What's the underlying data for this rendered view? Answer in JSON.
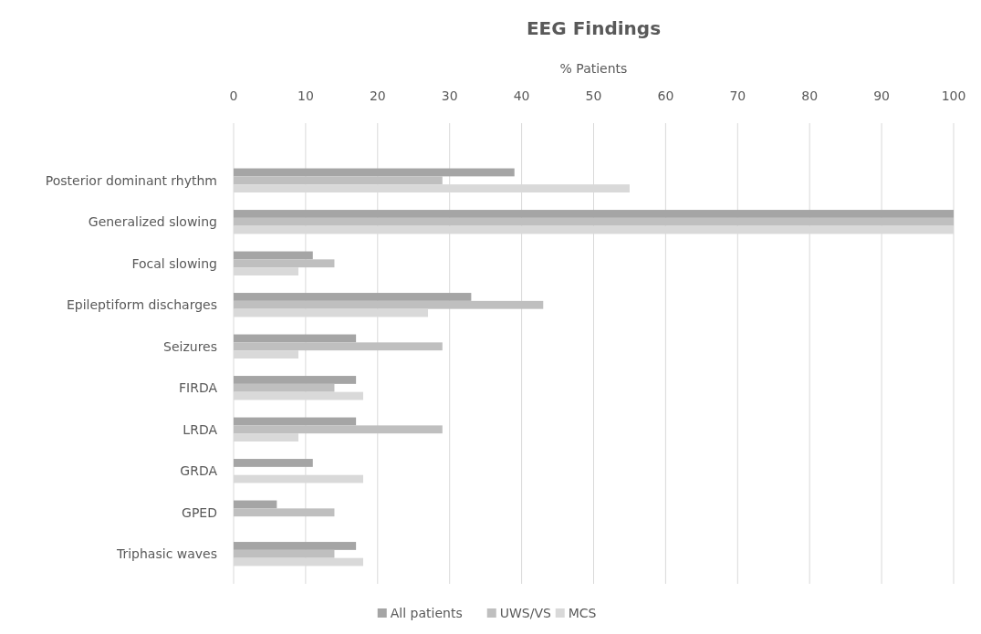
{
  "chart_data": {
    "type": "bar",
    "orientation": "horizontal",
    "title": "EEG Findings",
    "xlabel": "% Patients",
    "categories": [
      "Posterior dominant rhythm",
      "Generalized slowing",
      "Focal slowing",
      "Epileptiform discharges",
      "Seizures",
      "FIRDA",
      "LRDA",
      "GRDA",
      "GPED",
      "Triphasic waves"
    ],
    "series": [
      {
        "name": "All patients",
        "color": "#a5a5a5",
        "values": [
          39,
          100,
          11,
          33,
          17,
          17,
          17,
          11,
          6,
          17
        ]
      },
      {
        "name": "UWS/VS",
        "color": "#bfbfbf",
        "values": [
          29,
          100,
          14,
          43,
          29,
          14,
          29,
          0,
          14,
          14
        ]
      },
      {
        "name": "MCS",
        "color": "#d9d9d9",
        "values": [
          55,
          100,
          9,
          27,
          9,
          18,
          9,
          18,
          0,
          18
        ]
      }
    ],
    "xlim": [
      0,
      100
    ],
    "xticks": [
      0,
      10,
      20,
      30,
      40,
      50,
      60,
      70,
      80,
      90,
      100
    ],
    "grid": "x",
    "legend": "bottom"
  }
}
